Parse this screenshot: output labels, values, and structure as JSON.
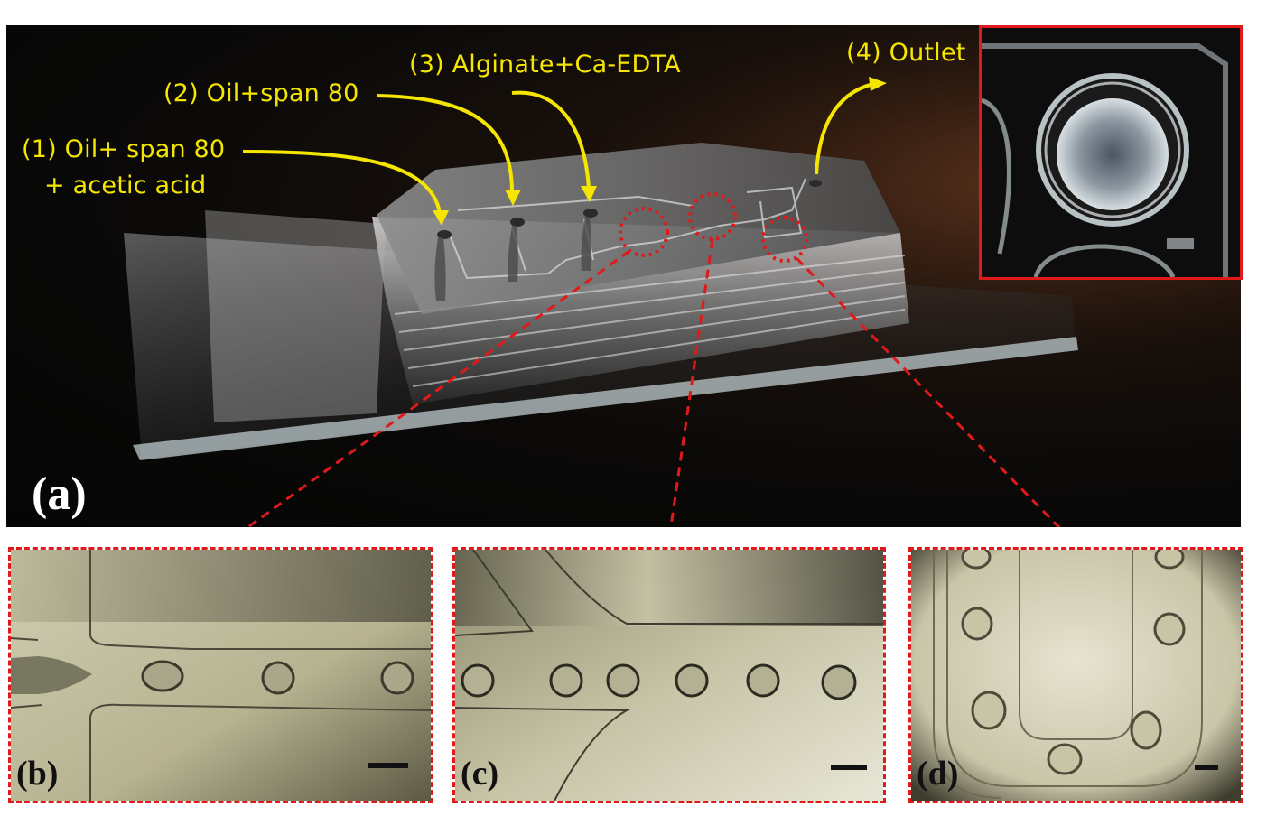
{
  "figure": {
    "panel_a_label": "(a)",
    "panel_b_label": "(b)",
    "panel_c_label": "(c)",
    "panel_d_label": "(d)"
  },
  "annotations": {
    "inlet1_line1": "(1) Oil+ span 80",
    "inlet1_line2": "+ acetic acid",
    "inlet2": "(2) Oil+span 80",
    "inlet3": "(3) Alginate+Ca-EDTA",
    "outlet": "(4) Outlet"
  },
  "colors": {
    "annotation_yellow": "#f5e600",
    "highlight_red": "#e01a1a"
  }
}
